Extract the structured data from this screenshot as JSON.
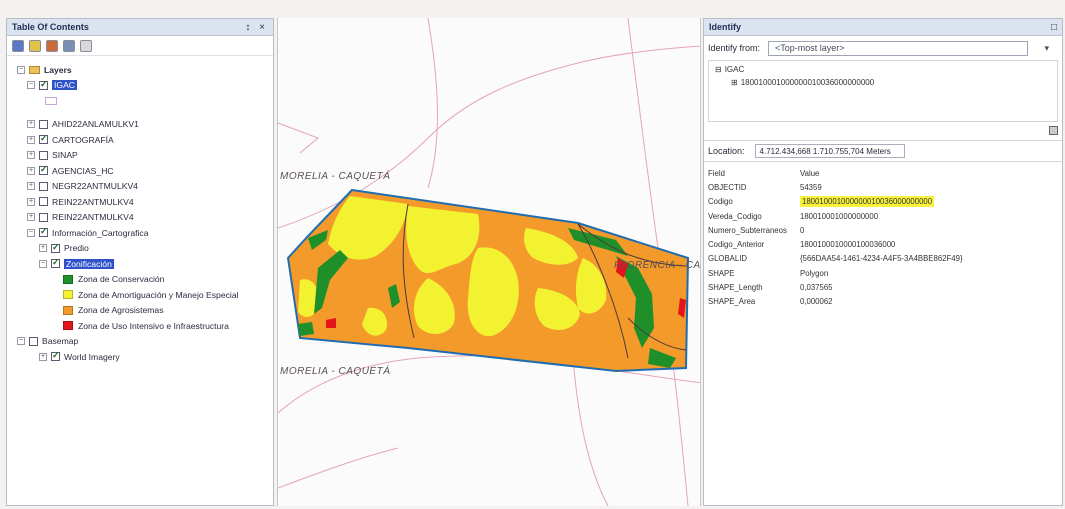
{
  "toc": {
    "title": "Table Of Contents",
    "pin": "↕ ×",
    "tree": {
      "layers_label": "Layers",
      "igac": "IGAC",
      "items": [
        {
          "label": "AHID22ANLAMULKV1",
          "checked": false
        },
        {
          "label": "CARTOGRAFÍA",
          "checked": true
        },
        {
          "label": "SINAP",
          "checked": false
        },
        {
          "label": "AGENCIAS_HC",
          "checked": true
        },
        {
          "label": "NEGR22ANTMULKV4",
          "checked": false
        },
        {
          "label": "REIN22ANTMULKV4",
          "checked": false
        },
        {
          "label": "REIN22ANTMULKV4",
          "checked": false
        }
      ],
      "info_carto": "Información_Cartografica",
      "predio": "Predio",
      "zonificacion": "Zonificación",
      "legend": [
        {
          "label": "Zona de Conservación",
          "color": "#1f8f2a"
        },
        {
          "label": "Zona de Amortiguación y Manejo Especial",
          "color": "#f3f230"
        },
        {
          "label": "Zona de Agrosistemas",
          "color": "#f39a2b"
        },
        {
          "label": "Zona de Uso Intensivo e Infraestructura",
          "color": "#e3141c"
        }
      ],
      "basemap": "Basemap",
      "world_imagery": "World Imagery"
    }
  },
  "map": {
    "labels": {
      "top": "MORELIA - CAQUETÁ",
      "right": "FLORENCIA - CAQ",
      "bottom": "MORELIA - CAQUETÁ"
    },
    "colors": {
      "conservacion": "#1f8f2a",
      "amortiguacion": "#f3f230",
      "agrosistemas": "#f39a2b",
      "uso_intensivo": "#e3141c",
      "outline": "#1f6db0",
      "boundary": "#e6a3b8"
    }
  },
  "identify": {
    "title": "Identify",
    "identify_from_label": "Identify from:",
    "identify_from_value": "<Top-most layer>",
    "tree": {
      "root": "IGAC",
      "child": "180010001000000010036000000000"
    },
    "location_label": "Location:",
    "location_value": "4.712.434,668  1.710.755,704 Meters",
    "header": {
      "field": "Field",
      "value": "Value"
    },
    "rows": [
      {
        "field": "OBJECTID",
        "value": "54359",
        "highlight": false
      },
      {
        "field": "Codigo",
        "value": "180010001000000010036000000000",
        "highlight": true
      },
      {
        "field": "Vereda_Codigo",
        "value": "180010001000000000",
        "highlight": false
      },
      {
        "field": "Numero_Subterraneos",
        "value": "0",
        "highlight": false
      },
      {
        "field": "Codigo_Anterior",
        "value": "1800100010000100036000",
        "highlight": false
      },
      {
        "field": "GLOBALID",
        "value": "{566DAA54-1461-4234-A4F5-3A4BBE862F49}",
        "highlight": false
      },
      {
        "field": "SHAPE",
        "value": "Polygon",
        "highlight": false
      },
      {
        "field": "SHAPE_Length",
        "value": "0,037565",
        "highlight": false
      },
      {
        "field": "SHAPE_Area",
        "value": "0,000062",
        "highlight": false
      }
    ]
  }
}
